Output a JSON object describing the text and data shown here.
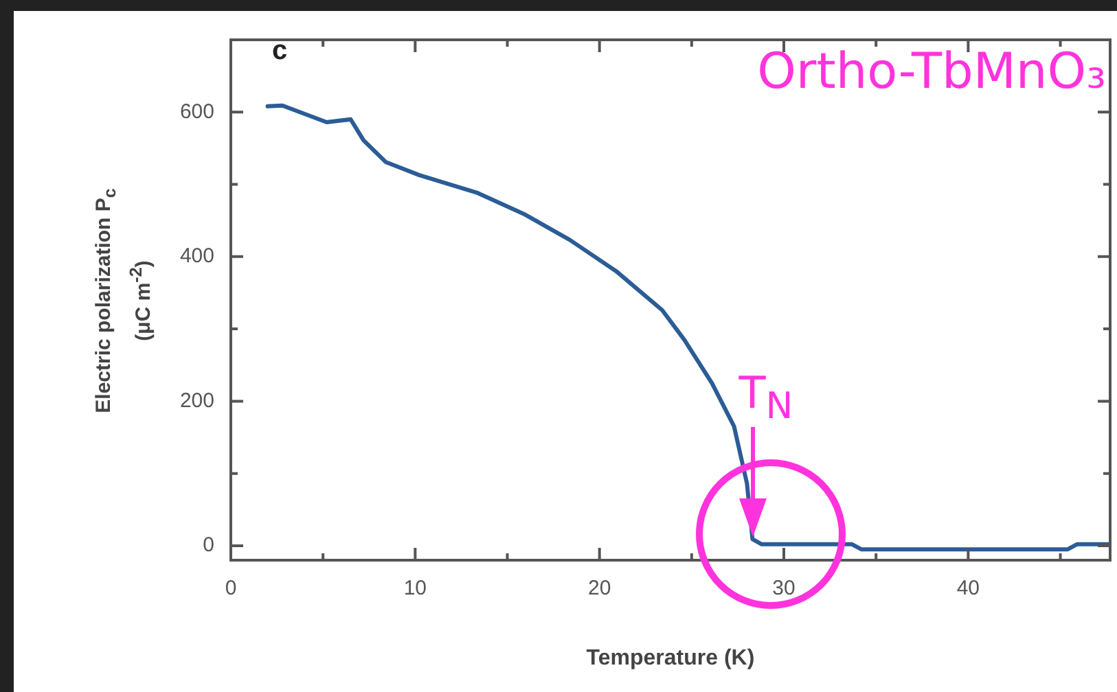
{
  "chart_data": {
    "type": "line",
    "xlabel": "Temperature (K)",
    "ylabel": "Electric polarization P$_{c}$ (μC m$^{-2}$)",
    "xlim": [
      0,
      47.7
    ],
    "ylim": [
      -20,
      700
    ],
    "xticks": [
      0,
      {
        "value": 5,
        "label": null
      },
      10,
      {
        "value": 15,
        "label": null
      },
      20,
      {
        "value": 25,
        "label": null
      },
      30,
      {
        "value": 35,
        "label": null
      },
      40,
      {
        "value": 45,
        "label": null
      }
    ],
    "yticks": [
      0,
      {
        "value": 100,
        "label": null
      },
      200,
      {
        "value": 300,
        "label": null
      },
      400,
      {
        "value": 500,
        "label": null
      },
      600
    ],
    "marker": "none",
    "line_style": "solid",
    "legend": false,
    "series": [
      {
        "color": "#2b5c96",
        "x": [
          2.0,
          2.8,
          5.2,
          6.5,
          7.2,
          8.4,
          10.2,
          13.4,
          15.9,
          18.4,
          20.9,
          23.4,
          24.6,
          26.1,
          27.3,
          28.0,
          28.3,
          28.8,
          33.7,
          34.2,
          45.4,
          45.9,
          47.7
        ],
        "values": [
          608,
          609,
          586,
          590,
          561,
          531,
          513,
          488,
          459,
          423,
          380,
          326,
          285,
          225,
          165,
          86,
          9,
          2,
          2,
          -5,
          -5,
          2,
          2
        ]
      }
    ],
    "annotations": [
      "c",
      "Ortho-TbMnO₃",
      {
        "text": "T$_{N}$",
        "x": 28.3,
        "y": 9
      }
    ]
  }
}
